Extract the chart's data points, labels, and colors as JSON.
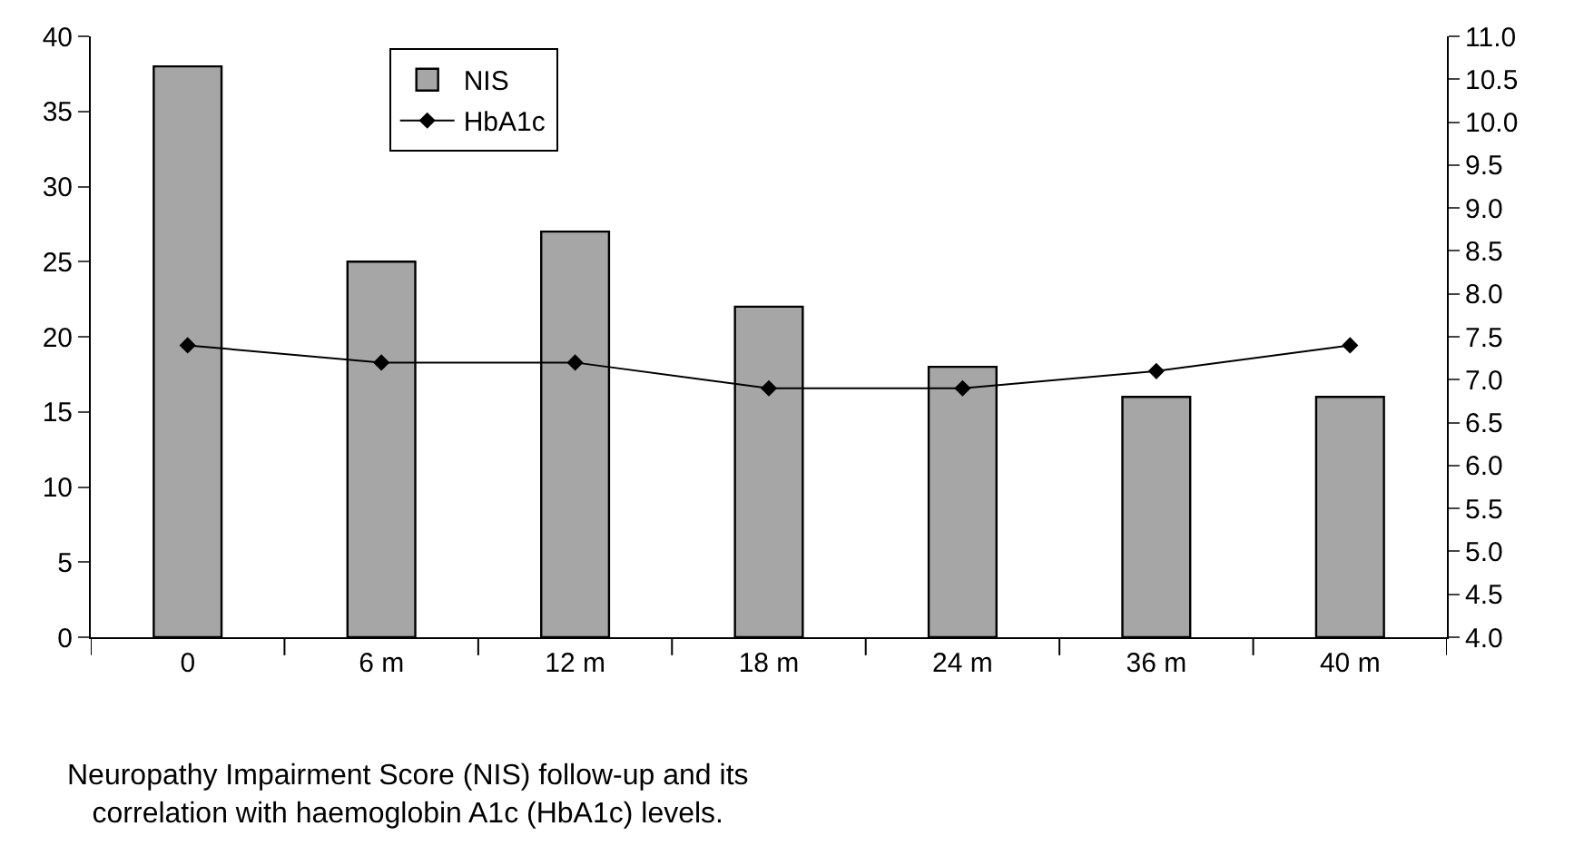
{
  "chart_data": {
    "type": "bar",
    "categories": [
      "0",
      "6 m",
      "12 m",
      "18 m",
      "24 m",
      "36 m",
      "40 m"
    ],
    "series": [
      {
        "name": "NIS",
        "color": "#a6a6a6",
        "values": [
          38,
          25,
          27,
          22,
          18,
          16,
          16
        ]
      },
      {
        "name": "HbA1c",
        "type": "line",
        "axis": "y2",
        "color": "#000000",
        "values": [
          7.4,
          7.2,
          7.2,
          6.9,
          6.9,
          7.1,
          7.4
        ]
      }
    ],
    "ylim": [
      0,
      40
    ],
    "yticks": [
      0,
      5,
      10,
      15,
      20,
      25,
      30,
      35,
      40
    ],
    "y2lim": [
      4,
      11
    ],
    "y2ticks": [
      {
        "value": 4,
        "label": "4.0"
      },
      {
        "value": 4.5,
        "label": "4.5"
      },
      {
        "value": 5,
        "label": "5.0"
      },
      {
        "value": 5.5,
        "label": "5.5"
      },
      {
        "value": 6,
        "label": "6.0"
      },
      {
        "value": 6.5,
        "label": "6.5"
      },
      {
        "value": 7,
        "label": "7.0"
      },
      {
        "value": 7.5,
        "label": "7.5"
      },
      {
        "value": 8,
        "label": "8.0"
      },
      {
        "value": 8.5,
        "label": "8.5"
      },
      {
        "value": 9,
        "label": "9.0"
      },
      {
        "value": 9.5,
        "label": "9.5"
      },
      {
        "value": 10,
        "label": "10.0"
      },
      {
        "value": 10.5,
        "label": "10.5"
      },
      {
        "value": 11,
        "label": "11.0"
      }
    ],
    "marker": "diamond",
    "line_style": "solid",
    "legend": "top left",
    "annotations": [
      "Neuropathy Impairment Score (NIS) follow-up and its\ncorrelation with haemoglobin A1c (HbA1c) levels."
    ]
  }
}
